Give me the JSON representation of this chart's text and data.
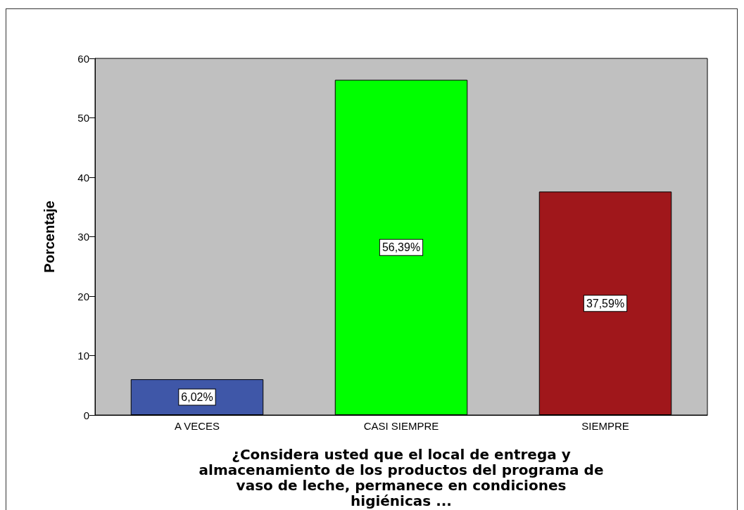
{
  "chart_data": {
    "type": "bar",
    "xlabel": "¿Considera usted que el local de entrega y almacenamiento de los productos del programa de vaso de leche, permanece en condiciones higiénicas ...",
    "ylabel": "Porcentaje",
    "categories": [
      "A VECES",
      "CASI SIEMPRE",
      "SIEMPRE"
    ],
    "values": [
      6.02,
      56.39,
      37.59
    ],
    "colors": [
      "#3f57a8",
      "#00ff00",
      "#a0171b"
    ],
    "value_labels": [
      "6,02%",
      "56,39%",
      "37,59%"
    ],
    "ylim": [
      0,
      60
    ],
    "yticks": [
      0,
      10,
      20,
      30,
      40,
      50,
      60
    ],
    "grid": false
  }
}
